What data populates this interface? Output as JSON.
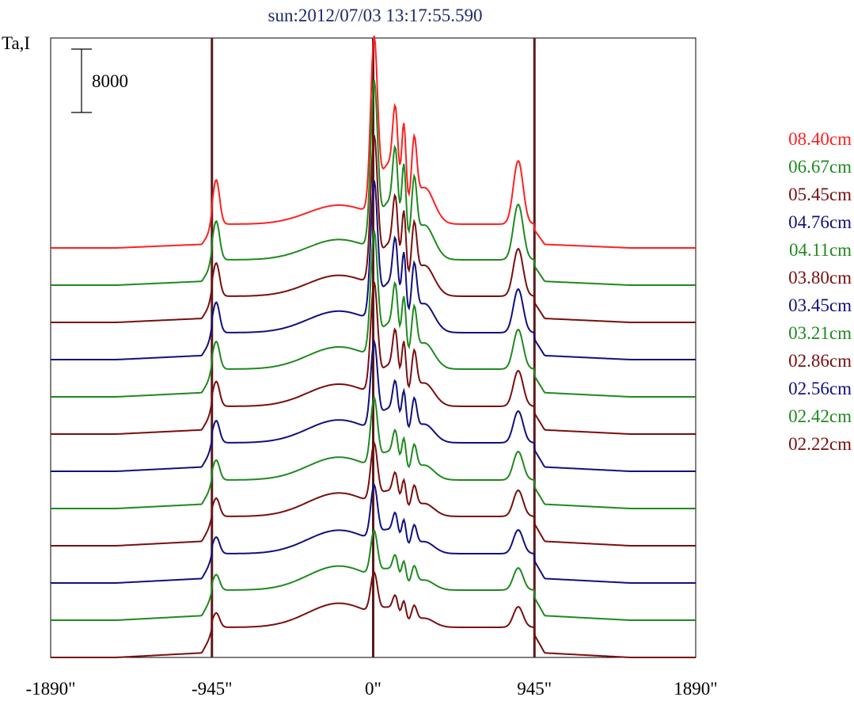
{
  "chart_data": {
    "type": "line",
    "title": "sun:2012/07/03 13:17:55.590",
    "ylabel": "Ta,I",
    "scale_bar_label": "8000",
    "x_ticks": [
      "-1890\"",
      "-945\"",
      "0\"",
      "945\"",
      "1890\""
    ],
    "x_tick_values": [
      -1890,
      -945,
      0,
      945,
      1890
    ],
    "xlim": [
      -1890,
      1890
    ],
    "vertical_markers": [
      -945,
      0,
      945
    ],
    "marker_color": "#5a1a1a",
    "series": [
      {
        "name": "08.40cm",
        "color": "#ff2020",
        "peak_center": 38000,
        "peak_limb": 8000,
        "disk": 3000
      },
      {
        "name": "06.67cm",
        "color": "#1e8a1e",
        "peak_center": 36000,
        "peak_limb": 7000,
        "disk": 3200
      },
      {
        "name": "05.45cm",
        "color": "#7a0e0e",
        "peak_center": 32000,
        "peak_limb": 6000,
        "disk": 3300
      },
      {
        "name": "04.76cm",
        "color": "#101080",
        "peak_center": 30000,
        "peak_limb": 5500,
        "disk": 3400
      },
      {
        "name": "04.11cm",
        "color": "#1e8a1e",
        "peak_center": 27000,
        "peak_limb": 5000,
        "disk": 3500
      },
      {
        "name": "03.80cm",
        "color": "#7a0e0e",
        "peak_center": 24000,
        "peak_limb": 4500,
        "disk": 3500
      },
      {
        "name": "03.45cm",
        "color": "#101080",
        "peak_center": 19000,
        "peak_limb": 4000,
        "disk": 3600
      },
      {
        "name": "03.21cm",
        "color": "#1e8a1e",
        "peak_center": 15000,
        "peak_limb": 3600,
        "disk": 3600
      },
      {
        "name": "02.86cm",
        "color": "#7a0e0e",
        "peak_center": 13000,
        "peak_limb": 3300,
        "disk": 3700
      },
      {
        "name": "02.56cm",
        "color": "#101080",
        "peak_center": 12000,
        "peak_limb": 3000,
        "disk": 3700
      },
      {
        "name": "02.42cm",
        "color": "#1e8a1e",
        "peak_center": 10000,
        "peak_limb": 2800,
        "disk": 3800
      },
      {
        "name": "02.22cm",
        "color": "#7a0e0e",
        "peak_center": 9000,
        "peak_limb": 2600,
        "disk": 3800
      }
    ]
  }
}
